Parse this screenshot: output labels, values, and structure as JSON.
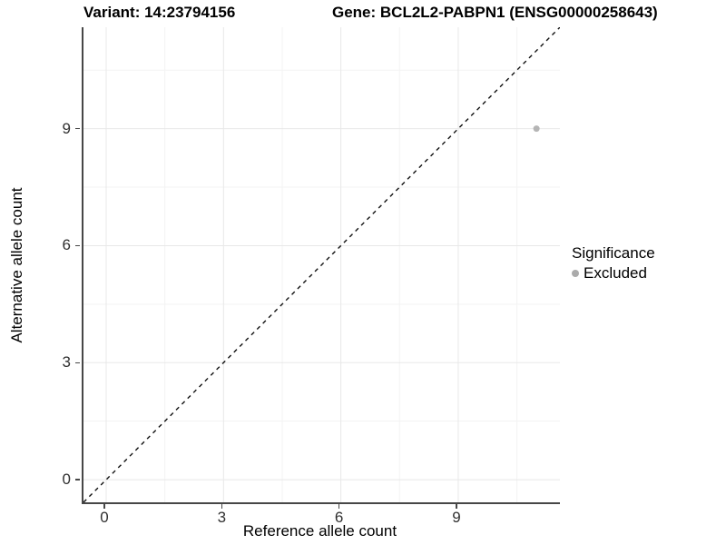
{
  "titles": {
    "variant": "Variant: 14:23794156",
    "gene": "Gene: BCL2L2-PABPN1 (ENSG00000258643)"
  },
  "chart_data": {
    "type": "scatter",
    "title": "Variant: 14:23794156  /  Gene: BCL2L2-PABPN1 (ENSG00000258643)",
    "xlabel": "Reference allele count",
    "ylabel": "Alternative allele count",
    "xlim": [
      -0.58,
      11.6
    ],
    "ylim": [
      -0.58,
      11.6
    ],
    "x_ticks": [
      0,
      3,
      6,
      9
    ],
    "y_ticks": [
      0,
      3,
      6,
      9
    ],
    "x_minor_gridlines": [
      1.5,
      4.5,
      7.5,
      10.5
    ],
    "y_minor_gridlines": [
      1.5,
      4.5,
      7.5,
      10.5
    ],
    "grid": true,
    "series": [
      {
        "name": "Excluded",
        "color": "#b5b5b5",
        "points": [
          {
            "x": 11,
            "y": 9
          }
        ]
      }
    ],
    "reference_line": {
      "type": "identity y = x",
      "style": "dashed",
      "color": "#111111"
    },
    "legend": {
      "title": "Significance",
      "position": "right",
      "items": [
        {
          "label": "Excluded",
          "color": "#ababab"
        }
      ]
    },
    "colors": {
      "major_grid": "#e8e8e8",
      "minor_grid": "#f3f3f3",
      "axis_line": "#474747",
      "tick_text": "#303030",
      "background": "#ffffff"
    }
  }
}
